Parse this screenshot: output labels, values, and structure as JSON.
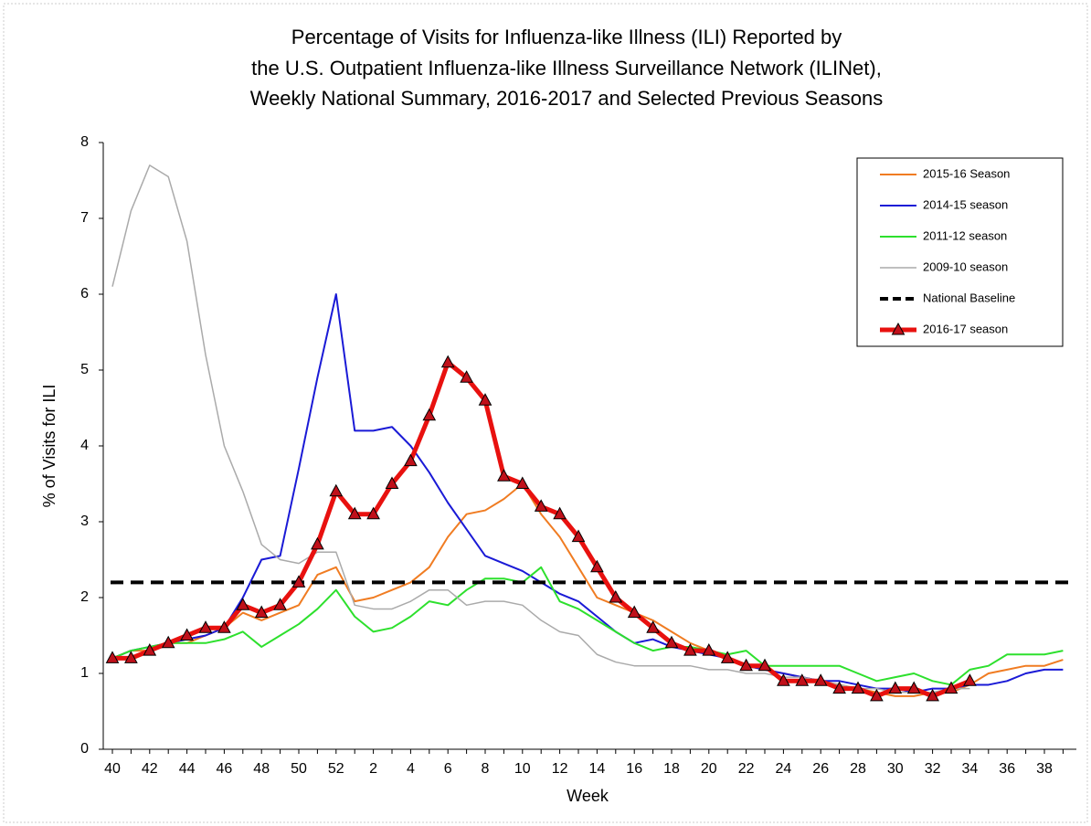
{
  "chart_data": {
    "type": "line",
    "title_lines": [
      "Percentage of Visits for Influenza-like Illness (ILI) Reported by",
      "the U.S. Outpatient Influenza-like Illness Surveillance Network (ILINet),",
      "Weekly National Summary, 2016-2017 and Selected Previous Seasons"
    ],
    "x_label": "Week",
    "y_label": "% of Visits for ILI",
    "categories": [
      "40",
      null,
      "42",
      null,
      "44",
      null,
      "46",
      null,
      "48",
      null,
      "50",
      null,
      "52",
      null,
      "2",
      null,
      "4",
      null,
      "6",
      null,
      "8",
      null,
      "10",
      null,
      "12",
      null,
      "14",
      null,
      "16",
      null,
      "18",
      null,
      "20",
      null,
      "22",
      null,
      "24",
      null,
      "26",
      null,
      "28",
      null,
      "30",
      null,
      "32",
      null,
      "34",
      null,
      "36",
      null,
      "38",
      null
    ],
    "ylim": [
      0,
      8
    ],
    "yticks": [
      0,
      1,
      2,
      3,
      4,
      5,
      6,
      7,
      8
    ],
    "legend": "upper right",
    "series": [
      {
        "name": "2015-16 Season",
        "color": "#f07c22",
        "width": 2,
        "values": [
          1.2,
          1.3,
          1.3,
          1.4,
          1.4,
          1.5,
          1.6,
          1.8,
          1.7,
          1.8,
          1.9,
          2.3,
          2.4,
          1.95,
          2.0,
          2.1,
          2.2,
          2.4,
          2.8,
          3.1,
          3.15,
          3.3,
          3.5,
          3.1,
          2.8,
          2.4,
          2.0,
          1.9,
          1.8,
          1.7,
          1.55,
          1.4,
          1.3,
          1.2,
          1.1,
          1.05,
          1.0,
          0.95,
          0.9,
          0.85,
          0.8,
          0.75,
          0.7,
          0.7,
          0.75,
          0.75,
          0.85,
          1.0,
          1.05,
          1.1,
          1.1,
          1.18
        ]
      },
      {
        "name": "2014-15 season",
        "color": "#1a1ad6",
        "width": 2,
        "values": [
          1.2,
          1.3,
          1.35,
          1.4,
          1.45,
          1.5,
          1.6,
          2.0,
          2.5,
          2.55,
          3.7,
          4.9,
          6.0,
          4.2,
          4.2,
          4.25,
          4.0,
          3.65,
          3.25,
          2.9,
          2.55,
          2.45,
          2.35,
          2.2,
          2.05,
          1.95,
          1.75,
          1.55,
          1.4,
          1.45,
          1.35,
          1.3,
          1.25,
          1.2,
          1.1,
          1.05,
          1.0,
          0.95,
          0.9,
          0.9,
          0.85,
          0.8,
          0.8,
          0.75,
          0.8,
          0.8,
          0.85,
          0.85,
          0.9,
          1.0,
          1.05,
          1.05
        ]
      },
      {
        "name": "2011-12 season",
        "color": "#2de02d",
        "width": 2,
        "values": [
          1.2,
          1.3,
          1.35,
          1.4,
          1.4,
          1.4,
          1.45,
          1.55,
          1.35,
          1.5,
          1.65,
          1.85,
          2.1,
          1.75,
          1.55,
          1.6,
          1.75,
          1.95,
          1.9,
          2.1,
          2.25,
          2.25,
          2.2,
          2.4,
          1.95,
          1.85,
          1.7,
          1.55,
          1.4,
          1.3,
          1.35,
          1.35,
          1.3,
          1.25,
          1.3,
          1.1,
          1.1,
          1.1,
          1.1,
          1.1,
          1.0,
          0.9,
          0.95,
          1.0,
          0.9,
          0.85,
          1.05,
          1.1,
          1.25,
          1.25,
          1.25,
          1.3
        ]
      },
      {
        "name": "2009-10 season",
        "color": "#aaaaaa",
        "width": 1.5,
        "values": [
          6.1,
          7.1,
          7.7,
          7.55,
          6.7,
          5.2,
          4.0,
          3.4,
          2.7,
          2.5,
          2.45,
          2.6,
          2.6,
          1.9,
          1.85,
          1.85,
          1.95,
          2.1,
          2.1,
          1.9,
          1.95,
          1.95,
          1.9,
          1.7,
          1.55,
          1.5,
          1.25,
          1.15,
          1.1,
          1.1,
          1.1,
          1.1,
          1.05,
          1.05,
          1.0,
          1.0,
          0.95,
          0.95,
          0.9,
          0.85,
          0.8,
          0.8,
          0.75,
          0.75,
          0.75,
          0.8,
          0.8,
          null,
          null,
          null,
          null,
          null
        ]
      },
      {
        "name": "National Baseline",
        "color": "#000000",
        "width": 4,
        "dashed": true,
        "hline": 2.2
      },
      {
        "name": "2016-17 season",
        "color": "#e8110f",
        "width": 5,
        "marker": "triangle",
        "marker_color": "#c0101a",
        "values": [
          1.2,
          1.2,
          1.3,
          1.4,
          1.5,
          1.6,
          1.6,
          1.9,
          1.8,
          1.9,
          2.2,
          2.7,
          3.4,
          3.1,
          3.1,
          3.5,
          3.8,
          4.4,
          5.1,
          4.9,
          4.6,
          3.6,
          3.5,
          3.2,
          3.1,
          2.8,
          2.4,
          2.0,
          1.8,
          1.6,
          1.4,
          1.3,
          1.3,
          1.2,
          1.1,
          1.1,
          0.9,
          0.9,
          0.9,
          0.8,
          0.8,
          0.7,
          0.8,
          0.8,
          0.7,
          0.8,
          0.9,
          null,
          null,
          null,
          null,
          null
        ]
      }
    ]
  }
}
